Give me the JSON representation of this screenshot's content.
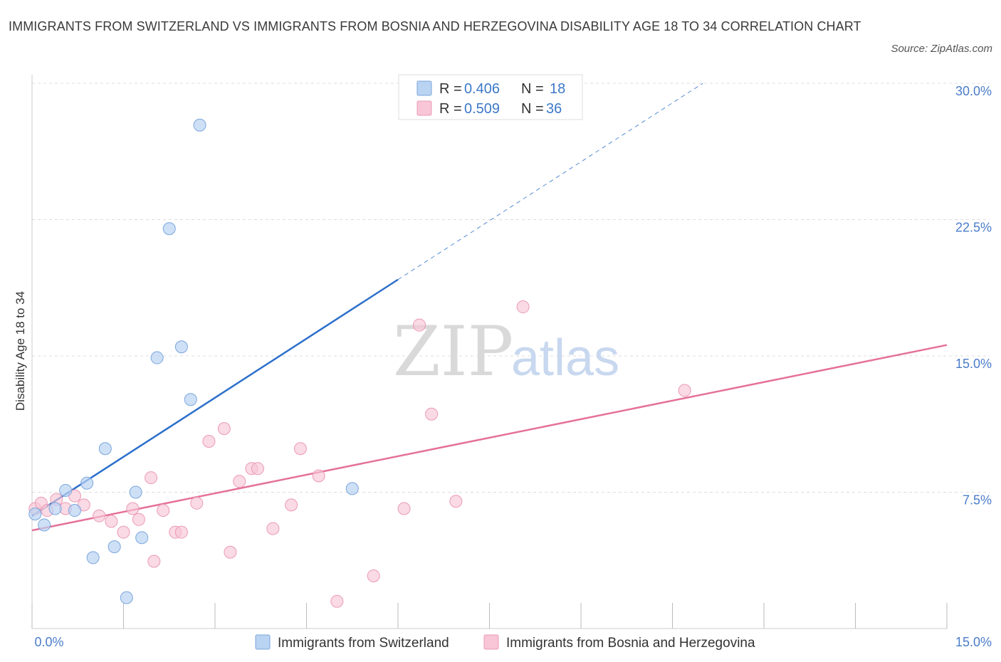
{
  "title": "IMMIGRANTS FROM SWITZERLAND VS IMMIGRANTS FROM BOSNIA AND HERZEGOVINA DISABILITY AGE 18 TO 34 CORRELATION CHART",
  "source": "Source: ZipAtlas.com",
  "watermark": {
    "zip": "ZIP",
    "atlas": "atlas"
  },
  "legend_top": [
    {
      "r_label": "R =",
      "r_value": "0.406",
      "n_label": "N =",
      "n_value": "18"
    },
    {
      "r_label": "R =",
      "r_value": "0.509",
      "n_label": "N =",
      "n_value": "36"
    }
  ],
  "colors": {
    "blue_fill": "#b9d3f2",
    "blue_stroke": "#7aa6dd",
    "blue_line": "#2b6fcb",
    "pink_fill": "#f8c6d6",
    "pink_stroke": "#eb9ab5",
    "pink_line": "#e5719a",
    "grid": "#dddddd",
    "tick_text": "#4a7cc9"
  },
  "chart_data": {
    "type": "scatter",
    "ylabel": "Disability Age 18 to 34",
    "xlabel": "",
    "xlim": [
      0,
      15
    ],
    "ylim": [
      0,
      30
    ],
    "x_tick_labels": [
      "0.0%",
      "15.0%"
    ],
    "y_ticks": [
      {
        "value": 7.5,
        "label": "7.5%"
      },
      {
        "value": 15,
        "label": "15.0%"
      },
      {
        "value": 22.5,
        "label": "22.5%"
      },
      {
        "value": 30,
        "label": "30.0%"
      }
    ],
    "grid": true,
    "legend_placement": "top-center and bottom",
    "series": [
      {
        "name": "Immigrants from Switzerland",
        "color": "blue",
        "points": [
          [
            0.05,
            6.3
          ],
          [
            0.2,
            5.7
          ],
          [
            0.38,
            6.6
          ],
          [
            0.55,
            7.6
          ],
          [
            0.7,
            6.5
          ],
          [
            0.9,
            8.0
          ],
          [
            1.0,
            3.9
          ],
          [
            1.2,
            9.9
          ],
          [
            1.35,
            4.5
          ],
          [
            1.55,
            1.7
          ],
          [
            1.7,
            7.5
          ],
          [
            1.8,
            5.0
          ],
          [
            2.05,
            14.9
          ],
          [
            2.25,
            22.0
          ],
          [
            2.45,
            15.5
          ],
          [
            2.6,
            12.6
          ],
          [
            2.75,
            27.7
          ],
          [
            5.25,
            7.7
          ]
        ],
        "trend": {
          "x_solid": [
            0,
            6.0
          ],
          "y_solid": [
            6.2,
            19.2
          ],
          "x_dashed": [
            6.0,
            11.0
          ],
          "y_dashed": [
            19.2,
            30.0
          ]
        }
      },
      {
        "name": "Immigrants from Bosnia and Herzegovina",
        "color": "pink",
        "points": [
          [
            0.05,
            6.6
          ],
          [
            0.15,
            6.9
          ],
          [
            0.25,
            6.5
          ],
          [
            0.4,
            7.1
          ],
          [
            0.55,
            6.6
          ],
          [
            0.7,
            7.3
          ],
          [
            0.85,
            6.8
          ],
          [
            1.1,
            6.2
          ],
          [
            1.3,
            5.9
          ],
          [
            1.5,
            5.3
          ],
          [
            1.65,
            6.6
          ],
          [
            1.75,
            6.0
          ],
          [
            1.95,
            8.3
          ],
          [
            2.0,
            3.7
          ],
          [
            2.15,
            6.5
          ],
          [
            2.35,
            5.3
          ],
          [
            2.45,
            5.3
          ],
          [
            2.7,
            6.9
          ],
          [
            2.9,
            10.3
          ],
          [
            3.15,
            11.0
          ],
          [
            3.25,
            4.2
          ],
          [
            3.4,
            8.1
          ],
          [
            3.6,
            8.8
          ],
          [
            3.7,
            8.8
          ],
          [
            3.95,
            5.5
          ],
          [
            4.25,
            6.8
          ],
          [
            4.4,
            9.9
          ],
          [
            4.7,
            8.4
          ],
          [
            5.0,
            1.5
          ],
          [
            5.6,
            2.9
          ],
          [
            6.1,
            6.6
          ],
          [
            6.35,
            16.7
          ],
          [
            6.55,
            11.8
          ],
          [
            6.95,
            7.0
          ],
          [
            8.05,
            17.7
          ],
          [
            10.7,
            13.1
          ]
        ],
        "trend": {
          "x_solid": [
            0,
            15.0
          ],
          "y_solid": [
            5.4,
            15.6
          ]
        }
      }
    ]
  },
  "legend_bottom": [
    "Immigrants from Switzerland",
    "Immigrants from Bosnia and Herzegovina"
  ]
}
